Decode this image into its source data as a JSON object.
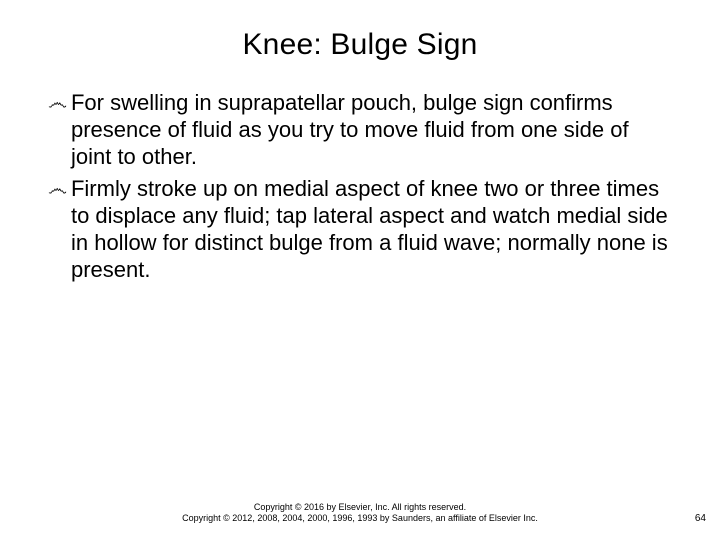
{
  "slide": {
    "title": "Knee: Bulge Sign",
    "title_fontsize": 30,
    "title_color": "#000000",
    "background_color": "#ffffff",
    "body_fontsize": 22,
    "body_color": "#000000",
    "bullet_marker": "෴",
    "bullets": [
      "For swelling in suprapatellar pouch, bulge sign confirms presence of fluid as you try to move fluid from one side of joint to other.",
      "Firmly stroke up on medial aspect of knee two or three times to displace any fluid; tap lateral aspect and watch medial side in hollow for distinct bulge from a fluid wave; normally none is present."
    ],
    "footer_line1": "Copyright © 2016 by Elsevier, Inc. All rights reserved.",
    "footer_line2": "Copyright © 2012, 2008, 2004, 2000, 1996, 1993 by Saunders, an affiliate of Elsevier Inc.",
    "footer_fontsize": 9,
    "page_number": "64",
    "page_number_fontsize": 10
  }
}
